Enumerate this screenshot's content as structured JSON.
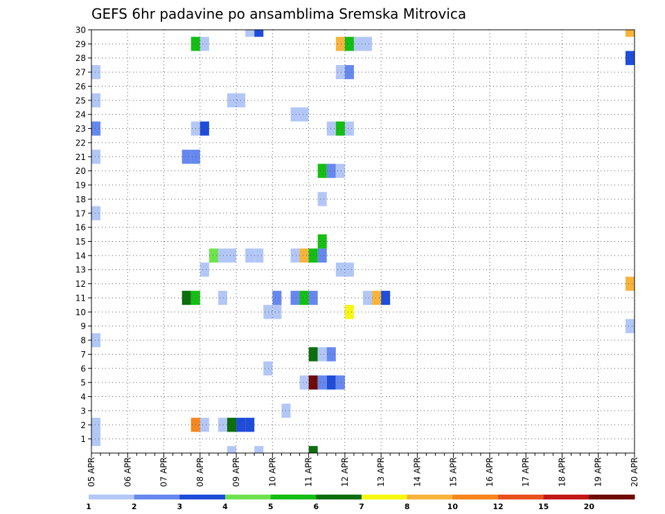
{
  "chart_data": {
    "type": "heatmap",
    "title": "GEFS 6hr padavine po ansamblima Sremska Mitrovica",
    "x_labels": [
      "05 APR",
      "06 APR",
      "07 APR",
      "08 APR",
      "09 APR",
      "10 APR",
      "11 APR",
      "12 APR",
      "13 APR",
      "14 APR",
      "15 APR",
      "16 APR",
      "17 APR",
      "18 APR",
      "19 APR",
      "20 APR"
    ],
    "y_labels": [
      "1",
      "2",
      "3",
      "4",
      "5",
      "6",
      "7",
      "8",
      "9",
      "10",
      "11",
      "12",
      "13",
      "14",
      "15",
      "16",
      "17",
      "18",
      "19",
      "20",
      "21",
      "22",
      "23",
      "24",
      "25",
      "26",
      "27",
      "28",
      "29",
      "30"
    ],
    "x_range": [
      0,
      60
    ],
    "y_range": [
      0,
      30
    ],
    "grid": true,
    "legend": {
      "placement": "bottom",
      "labels": [
        "1",
        "2",
        "3",
        "4",
        "5",
        "6",
        "7",
        "8",
        "10",
        "12",
        "15",
        "20"
      ],
      "colors": [
        "#b3c7f7",
        "#6688ee",
        "#1f4dd9",
        "#6fe34f",
        "#14be14",
        "#0c6e0c",
        "#f7f714",
        "#f7b43c",
        "#f7861e",
        "#e8501c",
        "#c21818",
        "#6e0a0a"
      ]
    },
    "cells": [
      {
        "t": 0,
        "m": 1,
        "v": 1
      },
      {
        "t": 0,
        "m": 2,
        "v": 1
      },
      {
        "t": 0,
        "m": 8,
        "v": 1
      },
      {
        "t": 0,
        "m": 17,
        "v": 1
      },
      {
        "t": 0,
        "m": 21,
        "v": 1
      },
      {
        "t": 0,
        "m": 23,
        "v": 2
      },
      {
        "t": 0,
        "m": 25,
        "v": 1
      },
      {
        "t": 0,
        "m": 27,
        "v": 1
      },
      {
        "t": 10,
        "m": 21,
        "v": 2
      },
      {
        "t": 11,
        "m": 21,
        "v": 2
      },
      {
        "t": 10,
        "m": 11,
        "v": 6
      },
      {
        "t": 11,
        "m": 11,
        "v": 5
      },
      {
        "t": 11,
        "m": 2,
        "v": 10
      },
      {
        "t": 12,
        "m": 2,
        "v": 1
      },
      {
        "t": 11,
        "m": 29,
        "v": 5
      },
      {
        "t": 12,
        "m": 29,
        "v": 1
      },
      {
        "t": 11,
        "m": 23,
        "v": 1
      },
      {
        "t": 12,
        "m": 23,
        "v": 3
      },
      {
        "t": 12,
        "m": 13,
        "v": 1
      },
      {
        "t": 13,
        "m": 14,
        "v": 4
      },
      {
        "t": 14,
        "m": 14,
        "v": 1
      },
      {
        "t": 14,
        "m": 11,
        "v": 1
      },
      {
        "t": 14,
        "m": 2,
        "v": 1
      },
      {
        "t": 15,
        "m": 2,
        "v": 6
      },
      {
        "t": 16,
        "m": 2,
        "v": 3
      },
      {
        "t": 17,
        "m": 2,
        "v": 3
      },
      {
        "t": 15,
        "m": 0,
        "v": 1
      },
      {
        "t": 18,
        "m": 0,
        "v": 1
      },
      {
        "t": 15,
        "m": 14,
        "v": 1
      },
      {
        "t": 15,
        "m": 25,
        "v": 1
      },
      {
        "t": 16,
        "m": 25,
        "v": 1
      },
      {
        "t": 17,
        "m": 14,
        "v": 1
      },
      {
        "t": 18,
        "m": 14,
        "v": 1
      },
      {
        "t": 17,
        "m": 30,
        "v": 1
      },
      {
        "t": 18,
        "m": 30,
        "v": 3
      },
      {
        "t": 19,
        "m": 10,
        "v": 1
      },
      {
        "t": 20,
        "m": 10,
        "v": 1
      },
      {
        "t": 19,
        "m": 6,
        "v": 1
      },
      {
        "t": 20,
        "m": 11,
        "v": 2
      },
      {
        "t": 21,
        "m": 3,
        "v": 1
      },
      {
        "t": 22,
        "m": 24,
        "v": 1
      },
      {
        "t": 23,
        "m": 24,
        "v": 1
      },
      {
        "t": 22,
        "m": 14,
        "v": 1
      },
      {
        "t": 23,
        "m": 14,
        "v": 8
      },
      {
        "t": 24,
        "m": 14,
        "v": 5
      },
      {
        "t": 25,
        "m": 14,
        "v": 2
      },
      {
        "t": 22,
        "m": 11,
        "v": 2
      },
      {
        "t": 23,
        "m": 11,
        "v": 5
      },
      {
        "t": 23,
        "m": 5,
        "v": 1
      },
      {
        "t": 24,
        "m": 5,
        "v": 20
      },
      {
        "t": 25,
        "m": 5,
        "v": 2
      },
      {
        "t": 26,
        "m": 5,
        "v": 3
      },
      {
        "t": 27,
        "m": 5,
        "v": 2
      },
      {
        "t": 24,
        "m": 0,
        "v": 6
      },
      {
        "t": 24,
        "m": 7,
        "v": 6
      },
      {
        "t": 25,
        "m": 7,
        "v": 1
      },
      {
        "t": 26,
        "m": 7,
        "v": 2
      },
      {
        "t": 24,
        "m": 11,
        "v": 2
      },
      {
        "t": 25,
        "m": 15,
        "v": 5
      },
      {
        "t": 25,
        "m": 18,
        "v": 1
      },
      {
        "t": 25,
        "m": 20,
        "v": 5
      },
      {
        "t": 26,
        "m": 20,
        "v": 2
      },
      {
        "t": 27,
        "m": 20,
        "v": 1
      },
      {
        "t": 26,
        "m": 23,
        "v": 1
      },
      {
        "t": 27,
        "m": 23,
        "v": 5
      },
      {
        "t": 28,
        "m": 23,
        "v": 1
      },
      {
        "t": 27,
        "m": 13,
        "v": 1
      },
      {
        "t": 28,
        "m": 13,
        "v": 1
      },
      {
        "t": 27,
        "m": 27,
        "v": 1
      },
      {
        "t": 28,
        "m": 27,
        "v": 2
      },
      {
        "t": 27,
        "m": 29,
        "v": 8
      },
      {
        "t": 28,
        "m": 29,
        "v": 5
      },
      {
        "t": 28,
        "m": 10,
        "v": 7
      },
      {
        "t": 29,
        "m": 29,
        "v": 1
      },
      {
        "t": 30,
        "m": 29,
        "v": 1
      },
      {
        "t": 30,
        "m": 11,
        "v": 1
      },
      {
        "t": 31,
        "m": 11,
        "v": 8
      },
      {
        "t": 32,
        "m": 11,
        "v": 3
      },
      {
        "t": 59,
        "m": 30,
        "v": 8
      },
      {
        "t": 59,
        "m": 28,
        "v": 3
      },
      {
        "t": 59,
        "m": 12,
        "v": 8
      },
      {
        "t": 59,
        "m": 9,
        "v": 1
      }
    ]
  }
}
